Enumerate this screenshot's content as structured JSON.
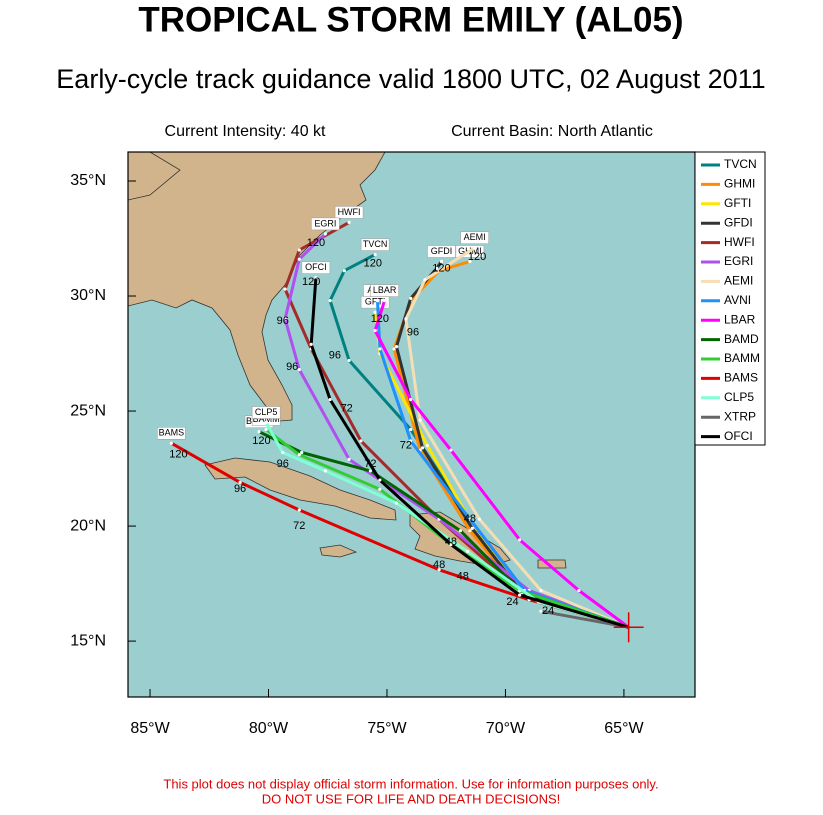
{
  "chart_data": {
    "type": "track",
    "title": "TROPICAL STORM EMILY (AL05)",
    "subtitle": "Early-cycle track guidance valid 1800 UTC, 02 August 2011",
    "intensity_label": "Current Intensity: 40 kt",
    "basin_label": "Current Basin: North Atlantic",
    "disclaimer": [
      "This plot does not display official storm information. Use for information purposes only.",
      "DO NOT USE FOR LIFE AND DEATH DECISIONS!"
    ],
    "xlim": [
      -85.93,
      -62.0
    ],
    "ylim": [
      12.57,
      36.26
    ],
    "xticks": [
      {
        "value": -85,
        "label": "85°W"
      },
      {
        "value": -80,
        "label": "80°W"
      },
      {
        "value": -75,
        "label": "75°W"
      },
      {
        "value": -70,
        "label": "70°W"
      },
      {
        "value": -65,
        "label": "65°W"
      }
    ],
    "yticks": [
      {
        "value": 15,
        "label": "15°N"
      },
      {
        "value": 20,
        "label": "20°N"
      },
      {
        "value": 25,
        "label": "25°N"
      },
      {
        "value": 30,
        "label": "30°N"
      },
      {
        "value": 35,
        "label": "35°N"
      }
    ],
    "current_position": {
      "lon": -64.8,
      "lat": 15.6
    },
    "series": [
      {
        "name": "TVCN",
        "color": "#008080",
        "x": [
          -64.8,
          -69.2,
          -71.5,
          -74.0,
          -76.6,
          -77.4,
          -76.8,
          -75.5
        ],
        "values": [
          15.6,
          17.2,
          20.3,
          24.2,
          27.2,
          29.8,
          31.1,
          31.8
        ]
      },
      {
        "name": "GHMI",
        "color": "#ff8c00",
        "x": [
          -64.8,
          -69.4,
          -71.5,
          -73.6,
          -74.7,
          -74.0,
          -72.8,
          -71.5
        ],
        "values": [
          15.6,
          17.2,
          19.8,
          23.3,
          27.7,
          29.8,
          31.1,
          31.5
        ]
      },
      {
        "name": "GFTI",
        "color": "#ffe600",
        "x": [
          -64.8,
          -69.2,
          -71.3,
          -73.3,
          -75.3,
          -75.5
        ],
        "values": [
          15.6,
          17.2,
          19.9,
          23.5,
          27.5,
          29.3
        ]
      },
      {
        "name": "GFDI",
        "color": "#333333",
        "x": [
          -64.8,
          -69.3,
          -71.4,
          -73.5,
          -74.6,
          -74.0,
          -72.9,
          -72.7
        ],
        "values": [
          15.6,
          17.1,
          19.9,
          23.4,
          27.8,
          29.9,
          31.2,
          31.5
        ]
      },
      {
        "name": "HWFI",
        "color": "#a52a2a",
        "x": [
          -64.8,
          -69.4,
          -72.8,
          -76.1,
          -78.2,
          -79.3,
          -78.7,
          -76.6
        ],
        "values": [
          15.6,
          17.2,
          20.3,
          23.7,
          27.7,
          30.3,
          32.0,
          33.2
        ]
      },
      {
        "name": "EGRI",
        "color": "#b050f0",
        "x": [
          -64.8,
          -69.0,
          -72.8,
          -76.6,
          -78.7,
          -79.3,
          -78.7,
          -77.6
        ],
        "values": [
          15.6,
          17.2,
          20.3,
          22.9,
          26.8,
          29.0,
          31.6,
          32.7
        ]
      },
      {
        "name": "AEMI",
        "color": "#f5deb3",
        "x": [
          -64.8,
          -68.5,
          -71.1,
          -73.6,
          -74.2,
          -73.4,
          -71.3
        ],
        "values": [
          15.6,
          17.2,
          20.3,
          24.6,
          29.0,
          30.7,
          32.1
        ]
      },
      {
        "name": "AVNI",
        "color": "#1e90ff",
        "x": [
          -64.8,
          -69.2,
          -71.5,
          -74.0,
          -75.3,
          -75.4
        ],
        "values": [
          15.6,
          17.2,
          20.3,
          23.7,
          27.7,
          29.8
        ]
      },
      {
        "name": "LBAR",
        "color": "#ff00ff",
        "x": [
          -64.8,
          -66.9,
          -69.4,
          -72.3,
          -74.0,
          -75.5,
          -75.1
        ],
        "values": [
          15.6,
          17.2,
          19.4,
          23.3,
          25.5,
          28.5,
          29.8
        ]
      },
      {
        "name": "BAMD",
        "color": "#006400",
        "x": [
          -64.8,
          -69.4,
          -71.9,
          -75.7,
          -78.6,
          -80.4
        ],
        "values": [
          15.6,
          17.2,
          19.8,
          22.4,
          23.2,
          24.1
        ]
      },
      {
        "name": "BAMM",
        "color": "#32cd32",
        "x": [
          -64.8,
          -69.4,
          -72.3,
          -75.3,
          -78.7,
          -80.1
        ],
        "values": [
          15.6,
          17.2,
          19.2,
          21.6,
          23.1,
          24.2
        ]
      },
      {
        "name": "BAMS",
        "color": "#e00000",
        "x": [
          -64.8,
          -69.0,
          -72.8,
          -78.7,
          -81.2,
          -84.1
        ],
        "values": [
          15.6,
          16.8,
          18.1,
          20.7,
          21.9,
          23.6
        ]
      },
      {
        "name": "CLP5",
        "color": "#7fffd4",
        "x": [
          -64.8,
          -68.6,
          -71.6,
          -74.6,
          -77.6,
          -79.4,
          -80.1
        ],
        "values": [
          15.6,
          16.7,
          18.9,
          21.0,
          22.4,
          23.2,
          24.5
        ]
      },
      {
        "name": "XTRP",
        "color": "#666666",
        "x": [
          -64.8,
          -68.5
        ],
        "values": [
          15.6,
          16.3
        ]
      },
      {
        "name": "OFCI",
        "color": "#000000",
        "x": [
          -64.8,
          -69.4,
          -72.3,
          -75.3,
          -77.4,
          -78.2,
          -78.0
        ],
        "values": [
          15.6,
          17.0,
          19.2,
          22.0,
          25.5,
          27.9,
          30.8
        ]
      }
    ],
    "hour_labels": [
      {
        "hour": 24,
        "lon": -68.2,
        "lat": 16.3
      },
      {
        "hour": 24,
        "lon": -69.7,
        "lat": 16.7
      },
      {
        "hour": 48,
        "lon": -72.8,
        "lat": 18.3
      },
      {
        "hour": 48,
        "lon": -72.3,
        "lat": 19.3
      },
      {
        "hour": 48,
        "lon": -71.5,
        "lat": 20.3
      },
      {
        "hour": 48,
        "lon": -71.8,
        "lat": 17.8
      },
      {
        "hour": 72,
        "lon": -78.7,
        "lat": 20.0
      },
      {
        "hour": 72,
        "lon": -75.7,
        "lat": 22.7
      },
      {
        "hour": 72,
        "lon": -74.2,
        "lat": 23.5
      },
      {
        "hour": 72,
        "lon": -76.7,
        "lat": 25.1
      },
      {
        "hour": 96,
        "lon": -81.2,
        "lat": 21.6
      },
      {
        "hour": 96,
        "lon": -79.4,
        "lat": 22.7
      },
      {
        "hour": 96,
        "lon": -77.2,
        "lat": 27.4
      },
      {
        "hour": 96,
        "lon": -79.0,
        "lat": 26.9
      },
      {
        "hour": 96,
        "lon": -79.4,
        "lat": 28.9
      },
      {
        "hour": 96,
        "lon": -73.9,
        "lat": 28.4
      },
      {
        "hour": 120,
        "lon": -83.8,
        "lat": 23.1
      },
      {
        "hour": 120,
        "lon": -80.3,
        "lat": 23.7
      },
      {
        "hour": 120,
        "lon": -78.0,
        "lat": 32.3
      },
      {
        "hour": 120,
        "lon": -75.6,
        "lat": 31.4
      },
      {
        "hour": 120,
        "lon": -78.2,
        "lat": 30.6
      },
      {
        "hour": 120,
        "lon": -72.7,
        "lat": 31.2
      },
      {
        "hour": 120,
        "lon": -71.2,
        "lat": 31.7
      },
      {
        "hour": 120,
        "lon": -75.3,
        "lat": 29.0
      }
    ]
  }
}
